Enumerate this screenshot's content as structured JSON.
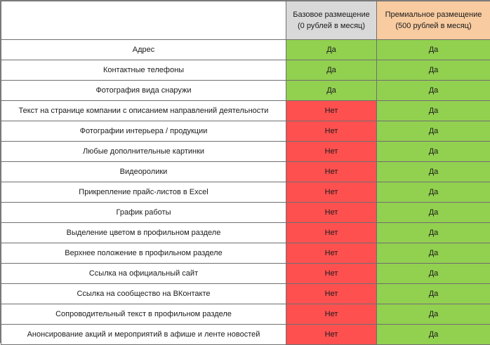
{
  "header": {
    "basic": {
      "line1": "Базовое размещение",
      "line2": "(0 рублей в месяц)",
      "color": "#d9d9d9"
    },
    "premium": {
      "line1": "Премиальное размещение",
      "line2": "(500 рублей в месяц)",
      "color": "#f8cba0"
    }
  },
  "colors": {
    "yes": "#92d050",
    "no": "#ff5050"
  },
  "rows": [
    {
      "feature": "Адрес",
      "basic": "Да",
      "premium": "Да"
    },
    {
      "feature": "Контактные телефоны",
      "basic": "Да",
      "premium": "Да"
    },
    {
      "feature": "Фотография вида снаружи",
      "basic": "Да",
      "premium": "Да"
    },
    {
      "feature": "Текст на странице компании с описанием направлений деятельности",
      "basic": "Нет",
      "premium": "Да"
    },
    {
      "feature": "Фотографии интерьера / продукции",
      "basic": "Нет",
      "premium": "Да"
    },
    {
      "feature": "Любые дополнительные картинки",
      "basic": "Нет",
      "premium": "Да"
    },
    {
      "feature": "Видеоролики",
      "basic": "Нет",
      "premium": "Да"
    },
    {
      "feature": "Прикрепление прайс-листов в Excel",
      "basic": "Нет",
      "premium": "Да"
    },
    {
      "feature": "График работы",
      "basic": "Нет",
      "premium": "Да"
    },
    {
      "feature": "Выделение цветом в профильном разделе",
      "basic": "Нет",
      "premium": "Да"
    },
    {
      "feature": "Верхнее положение в профильном разделе",
      "basic": "Нет",
      "premium": "Да"
    },
    {
      "feature": "Ссылка на официальный сайт",
      "basic": "Нет",
      "premium": "Да"
    },
    {
      "feature": "Ссылка на сообщество на ВКонтакте",
      "basic": "Нет",
      "premium": "Да"
    },
    {
      "feature": "Сопроводительный текст в профильном разделе",
      "basic": "Нет",
      "premium": "Да"
    },
    {
      "feature": "Анонсирование акций и мероприятий в афише и ленте новостей",
      "basic": "Нет",
      "premium": "Да"
    }
  ]
}
